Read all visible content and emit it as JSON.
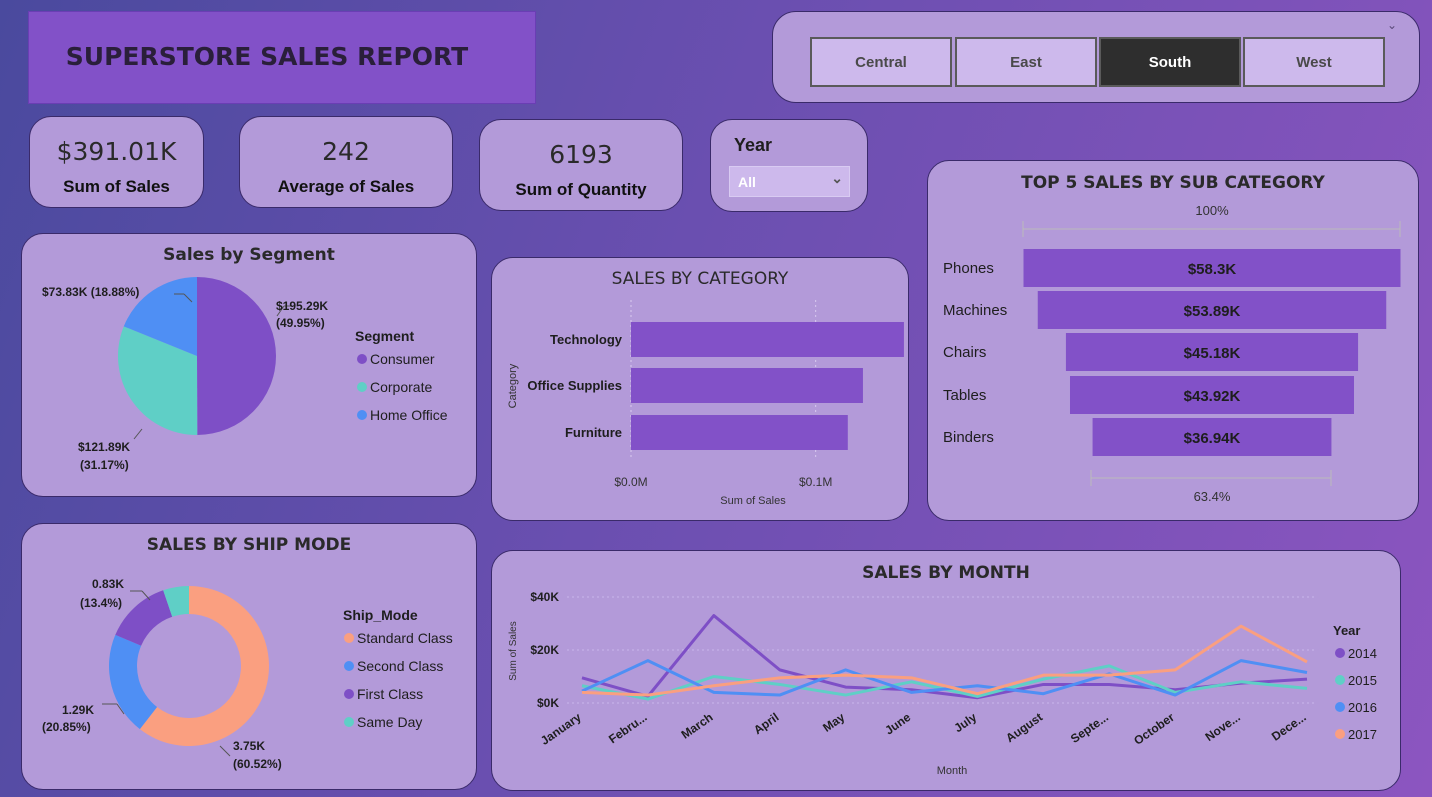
{
  "report_title": "SUPERSTORE SALES REPORT",
  "region_filter": {
    "options": [
      "Central",
      "East",
      "South",
      "West"
    ],
    "selected": "South"
  },
  "kpis": [
    {
      "value": "$391.01K",
      "label": "Sum of Sales"
    },
    {
      "value": "242",
      "label": "Average of Sales"
    },
    {
      "value": "6193",
      "label": "Sum of Quantity"
    }
  ],
  "year_filter": {
    "label": "Year",
    "value": "All"
  },
  "colors": {
    "consumer": "#7e4fc6",
    "corporate": "#5fcfc6",
    "home_office": "#4f8ff4",
    "standard_class": "#fa9f80",
    "accent_bar": "#8251c8"
  },
  "chart_data": [
    {
      "type": "pie",
      "title": "Sales by Segment",
      "legend_title": "Segment",
      "legend_position": "right",
      "slices": [
        {
          "name": "Consumer",
          "value": 195.29,
          "label": "$195.29K",
          "pct_label": "(49.95%)",
          "color": "#7e4fc6"
        },
        {
          "name": "Corporate",
          "value": 121.89,
          "label": "$121.89K",
          "pct_label": "(31.17%)",
          "color": "#5fcfc6"
        },
        {
          "name": "Home Office",
          "value": 73.83,
          "label": "$73.83K (18.88%)",
          "pct_label": "",
          "color": "#4f8ff4"
        }
      ]
    },
    {
      "type": "bar",
      "orientation": "horizontal",
      "title": "SALES BY CATEGORY",
      "xlabel": "Sum of Sales",
      "ylabel": "Category",
      "categories": [
        "Technology",
        "Office Supplies",
        "Furniture"
      ],
      "values": [
        0.1478,
        0.1256,
        0.1174
      ],
      "xticks": [
        {
          "value": 0.0,
          "label": "$0.0M"
        },
        {
          "value": 0.1,
          "label": "$0.1M"
        }
      ],
      "xlim": [
        0,
        0.15
      ]
    },
    {
      "type": "bar",
      "subtype": "funnel",
      "title": "TOP 5 SALES BY SUB CATEGORY",
      "top_label": "100%",
      "bottom_label": "63.4%",
      "categories": [
        "Phones",
        "Machines",
        "Chairs",
        "Tables",
        "Binders"
      ],
      "values": [
        58.3,
        53.89,
        45.18,
        43.92,
        36.94
      ],
      "value_labels": [
        "$58.3K",
        "$53.89K",
        "$45.18K",
        "$43.92K",
        "$36.94K"
      ]
    },
    {
      "type": "pie",
      "subtype": "donut",
      "title": "SALES BY SHIP MODE",
      "legend_title": "Ship_Mode",
      "legend_position": "right",
      "slices": [
        {
          "name": "Standard Class",
          "value": 60.52,
          "label": "3.75K",
          "pct_label": "(60.52%)",
          "color": "#fa9f80"
        },
        {
          "name": "Second Class",
          "value": 20.85,
          "label": "1.29K",
          "pct_label": "(20.85%)",
          "color": "#4f8ff4"
        },
        {
          "name": "First Class",
          "value": 13.4,
          "label": "0.83K",
          "pct_label": "(13.4%)",
          "color": "#7e4fc6"
        },
        {
          "name": "Same Day",
          "value": 5.23,
          "label": "",
          "pct_label": "",
          "color": "#5fcfc6"
        }
      ]
    },
    {
      "type": "line",
      "title": "SALES BY MONTH",
      "xlabel": "Month",
      "ylabel": "Sum of Sales",
      "legend_title": "Year",
      "legend_position": "right",
      "x": [
        "January",
        "Febru...",
        "March",
        "April",
        "May",
        "June",
        "July",
        "August",
        "Septe...",
        "October",
        "Nove...",
        "Dece..."
      ],
      "yticks": [
        {
          "value": 0,
          "label": "$0K"
        },
        {
          "value": 20000,
          "label": "$20K"
        },
        {
          "value": 40000,
          "label": "$40K"
        }
      ],
      "ylim": [
        0,
        40000
      ],
      "series": [
        {
          "name": "2014",
          "color": "#7e4fc6",
          "values": [
            9500,
            2500,
            33000,
            12500,
            6000,
            5000,
            2000,
            7000,
            7000,
            5000,
            7500,
            9000
          ]
        },
        {
          "name": "2015",
          "color": "#5fcfc6",
          "values": [
            6500,
            1500,
            10000,
            7000,
            3000,
            8000,
            2500,
            9000,
            14000,
            4000,
            8000,
            5500
          ]
        },
        {
          "name": "2016",
          "color": "#4f8ff4",
          "values": [
            4500,
            16000,
            4000,
            3000,
            12500,
            4000,
            6500,
            3500,
            11000,
            3000,
            16000,
            11500
          ]
        },
        {
          "name": "2017",
          "color": "#fa9f80",
          "values": [
            4000,
            3000,
            6500,
            9500,
            10500,
            9500,
            3500,
            10500,
            10500,
            12500,
            29000,
            15500
          ]
        }
      ]
    }
  ]
}
